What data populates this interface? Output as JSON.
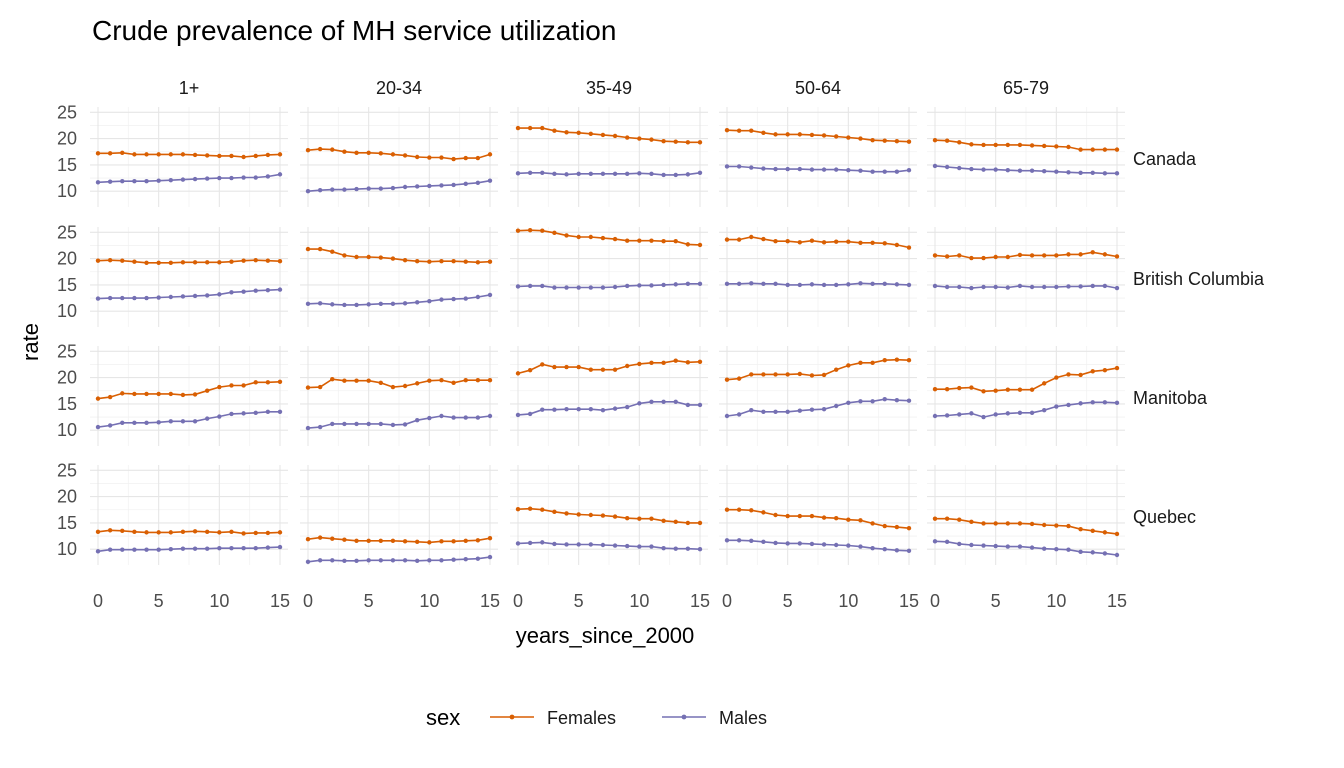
{
  "chart_data": {
    "type": "line",
    "title": "Crude prevalence of MH service utilization",
    "xlabel": "years_since_2000",
    "ylabel": "rate",
    "xlim": [
      0,
      15
    ],
    "ylim": [
      7,
      26
    ],
    "x_ticks": [
      0,
      5,
      10,
      15
    ],
    "y_ticks": [
      10,
      15,
      20,
      25
    ],
    "grid": true,
    "legend": {
      "title": "sex",
      "position": "bottom"
    },
    "x": [
      0,
      1,
      2,
      3,
      4,
      5,
      6,
      7,
      8,
      9,
      10,
      11,
      12,
      13,
      14,
      15
    ],
    "series_colors": {
      "Females": "#D95F02",
      "Males": "#7570B3"
    },
    "col_facets": [
      "1+",
      "20-34",
      "35-49",
      "50-64",
      "65-79"
    ],
    "row_facets": [
      "Canada",
      "British Columbia",
      "Manitoba",
      "Quebec"
    ],
    "panels": [
      {
        "row": "Canada",
        "col": "1+",
        "series": [
          {
            "name": "Females",
            "values": [
              17.2,
              17.2,
              17.3,
              17.0,
              17.0,
              17.0,
              17.0,
              17.0,
              16.9,
              16.8,
              16.7,
              16.7,
              16.5,
              16.7,
              16.9,
              17.0
            ]
          },
          {
            "name": "Males",
            "values": [
              11.7,
              11.8,
              11.9,
              11.9,
              11.9,
              12.0,
              12.1,
              12.2,
              12.3,
              12.4,
              12.5,
              12.5,
              12.6,
              12.6,
              12.8,
              13.2
            ]
          }
        ]
      },
      {
        "row": "Canada",
        "col": "20-34",
        "series": [
          {
            "name": "Females",
            "values": [
              17.8,
              18.0,
              17.9,
              17.5,
              17.3,
              17.3,
              17.2,
              17.0,
              16.8,
              16.5,
              16.4,
              16.4,
              16.1,
              16.3,
              16.3,
              17.0
            ]
          },
          {
            "name": "Males",
            "values": [
              10.0,
              10.2,
              10.3,
              10.3,
              10.4,
              10.5,
              10.5,
              10.6,
              10.8,
              10.9,
              11.0,
              11.1,
              11.2,
              11.4,
              11.6,
              12.0
            ]
          }
        ]
      },
      {
        "row": "Canada",
        "col": "35-49",
        "series": [
          {
            "name": "Females",
            "values": [
              22.0,
              22.0,
              22.0,
              21.5,
              21.2,
              21.1,
              20.9,
              20.7,
              20.5,
              20.2,
              20.0,
              19.8,
              19.5,
              19.4,
              19.3,
              19.3
            ]
          },
          {
            "name": "Males",
            "values": [
              13.4,
              13.5,
              13.5,
              13.3,
              13.2,
              13.3,
              13.3,
              13.3,
              13.3,
              13.3,
              13.4,
              13.3,
              13.1,
              13.1,
              13.2,
              13.5
            ]
          }
        ]
      },
      {
        "row": "Canada",
        "col": "50-64",
        "series": [
          {
            "name": "Females",
            "values": [
              21.6,
              21.5,
              21.5,
              21.1,
              20.8,
              20.8,
              20.8,
              20.7,
              20.6,
              20.4,
              20.2,
              20.0,
              19.7,
              19.6,
              19.5,
              19.4
            ]
          },
          {
            "name": "Males",
            "values": [
              14.7,
              14.7,
              14.5,
              14.3,
              14.2,
              14.2,
              14.2,
              14.1,
              14.1,
              14.1,
              14.0,
              13.9,
              13.7,
              13.7,
              13.7,
              14.0
            ]
          }
        ]
      },
      {
        "row": "Canada",
        "col": "65-79",
        "series": [
          {
            "name": "Females",
            "values": [
              19.7,
              19.6,
              19.3,
              18.9,
              18.8,
              18.8,
              18.8,
              18.8,
              18.7,
              18.6,
              18.5,
              18.4,
              17.9,
              17.9,
              17.9,
              17.9
            ]
          },
          {
            "name": "Males",
            "values": [
              14.8,
              14.6,
              14.4,
              14.2,
              14.1,
              14.1,
              14.0,
              13.9,
              13.9,
              13.8,
              13.7,
              13.6,
              13.5,
              13.5,
              13.4,
              13.4
            ]
          }
        ]
      },
      {
        "row": "British Columbia",
        "col": "1+",
        "series": [
          {
            "name": "Females",
            "values": [
              19.6,
              19.7,
              19.6,
              19.4,
              19.2,
              19.2,
              19.2,
              19.3,
              19.3,
              19.3,
              19.3,
              19.4,
              19.6,
              19.7,
              19.6,
              19.5
            ]
          },
          {
            "name": "Males",
            "values": [
              12.4,
              12.5,
              12.5,
              12.5,
              12.5,
              12.6,
              12.7,
              12.8,
              12.9,
              13.0,
              13.2,
              13.6,
              13.7,
              13.9,
              14.0,
              14.1
            ]
          }
        ]
      },
      {
        "row": "British Columbia",
        "col": "20-34",
        "series": [
          {
            "name": "Females",
            "values": [
              21.8,
              21.8,
              21.3,
              20.6,
              20.3,
              20.3,
              20.2,
              20.0,
              19.7,
              19.5,
              19.4,
              19.5,
              19.5,
              19.4,
              19.3,
              19.4
            ]
          },
          {
            "name": "Males",
            "values": [
              11.4,
              11.5,
              11.3,
              11.2,
              11.2,
              11.3,
              11.4,
              11.4,
              11.5,
              11.7,
              11.9,
              12.2,
              12.3,
              12.4,
              12.7,
              13.1
            ]
          }
        ]
      },
      {
        "row": "British Columbia",
        "col": "35-49",
        "series": [
          {
            "name": "Females",
            "values": [
              25.3,
              25.4,
              25.3,
              24.9,
              24.4,
              24.1,
              24.1,
              23.9,
              23.7,
              23.4,
              23.4,
              23.4,
              23.3,
              23.3,
              22.7,
              22.6
            ]
          },
          {
            "name": "Males",
            "values": [
              14.7,
              14.8,
              14.8,
              14.5,
              14.5,
              14.5,
              14.5,
              14.5,
              14.6,
              14.8,
              14.9,
              14.9,
              15.0,
              15.1,
              15.2,
              15.2
            ]
          }
        ]
      },
      {
        "row": "British Columbia",
        "col": "50-64",
        "series": [
          {
            "name": "Females",
            "values": [
              23.6,
              23.6,
              24.1,
              23.7,
              23.3,
              23.3,
              23.1,
              23.4,
              23.1,
              23.2,
              23.2,
              23.0,
              23.0,
              22.9,
              22.6,
              22.1
            ]
          },
          {
            "name": "Males",
            "values": [
              15.2,
              15.2,
              15.3,
              15.2,
              15.2,
              15.0,
              15.0,
              15.1,
              15.0,
              15.0,
              15.1,
              15.3,
              15.2,
              15.2,
              15.1,
              15.0
            ]
          }
        ]
      },
      {
        "row": "British Columbia",
        "col": "65-79",
        "series": [
          {
            "name": "Females",
            "values": [
              20.6,
              20.4,
              20.6,
              20.1,
              20.1,
              20.3,
              20.3,
              20.7,
              20.6,
              20.6,
              20.6,
              20.8,
              20.8,
              21.2,
              20.8,
              20.4
            ]
          },
          {
            "name": "Males",
            "values": [
              14.8,
              14.6,
              14.6,
              14.4,
              14.6,
              14.6,
              14.5,
              14.8,
              14.6,
              14.6,
              14.6,
              14.7,
              14.7,
              14.8,
              14.8,
              14.4
            ]
          }
        ]
      },
      {
        "row": "Manitoba",
        "col": "1+",
        "series": [
          {
            "name": "Females",
            "values": [
              16.0,
              16.3,
              17.0,
              16.9,
              16.9,
              16.9,
              16.9,
              16.7,
              16.8,
              17.5,
              18.2,
              18.5,
              18.5,
              19.1,
              19.1,
              19.2
            ]
          },
          {
            "name": "Males",
            "values": [
              10.6,
              10.9,
              11.4,
              11.4,
              11.4,
              11.5,
              11.7,
              11.7,
              11.7,
              12.2,
              12.6,
              13.1,
              13.2,
              13.3,
              13.5,
              13.5
            ]
          }
        ]
      },
      {
        "row": "Manitoba",
        "col": "20-34",
        "series": [
          {
            "name": "Females",
            "values": [
              18.1,
              18.2,
              19.7,
              19.4,
              19.4,
              19.4,
              19.0,
              18.2,
              18.4,
              18.9,
              19.4,
              19.5,
              19.0,
              19.5,
              19.5,
              19.5
            ]
          },
          {
            "name": "Males",
            "values": [
              10.4,
              10.6,
              11.2,
              11.2,
              11.2,
              11.2,
              11.2,
              11.0,
              11.1,
              11.9,
              12.3,
              12.7,
              12.4,
              12.4,
              12.4,
              12.7
            ]
          }
        ]
      },
      {
        "row": "Manitoba",
        "col": "35-49",
        "series": [
          {
            "name": "Females",
            "values": [
              20.8,
              21.4,
              22.5,
              22.0,
              22.0,
              22.0,
              21.5,
              21.5,
              21.5,
              22.2,
              22.6,
              22.8,
              22.8,
              23.2,
              22.9,
              23.0
            ]
          },
          {
            "name": "Males",
            "values": [
              12.9,
              13.1,
              13.9,
              13.9,
              14.0,
              14.0,
              14.0,
              13.8,
              14.1,
              14.4,
              15.1,
              15.4,
              15.4,
              15.4,
              14.8,
              14.8
            ]
          }
        ]
      },
      {
        "row": "Manitoba",
        "col": "50-64",
        "series": [
          {
            "name": "Females",
            "values": [
              19.6,
              19.8,
              20.6,
              20.6,
              20.6,
              20.6,
              20.7,
              20.4,
              20.5,
              21.5,
              22.3,
              22.8,
              22.8,
              23.3,
              23.4,
              23.3
            ]
          },
          {
            "name": "Males",
            "values": [
              12.7,
              13.0,
              13.8,
              13.5,
              13.5,
              13.5,
              13.7,
              13.9,
              14.0,
              14.6,
              15.2,
              15.5,
              15.5,
              15.9,
              15.7,
              15.6
            ]
          }
        ]
      },
      {
        "row": "Manitoba",
        "col": "65-79",
        "series": [
          {
            "name": "Females",
            "values": [
              17.8,
              17.8,
              18.0,
              18.1,
              17.4,
              17.5,
              17.7,
              17.7,
              17.7,
              18.9,
              20.0,
              20.6,
              20.5,
              21.2,
              21.4,
              21.8
            ]
          },
          {
            "name": "Males",
            "values": [
              12.7,
              12.8,
              13.0,
              13.2,
              12.5,
              13.0,
              13.2,
              13.3,
              13.3,
              13.8,
              14.5,
              14.8,
              15.1,
              15.3,
              15.3,
              15.2
            ]
          }
        ]
      },
      {
        "row": "Quebec",
        "col": "1+",
        "series": [
          {
            "name": "Females",
            "values": [
              13.3,
              13.6,
              13.5,
              13.3,
              13.2,
              13.2,
              13.2,
              13.3,
              13.4,
              13.3,
              13.2,
              13.3,
              13.0,
              13.1,
              13.1,
              13.2
            ]
          },
          {
            "name": "Males",
            "values": [
              9.6,
              9.9,
              9.9,
              9.9,
              9.9,
              9.9,
              10.0,
              10.1,
              10.1,
              10.1,
              10.2,
              10.2,
              10.2,
              10.2,
              10.3,
              10.4
            ]
          }
        ]
      },
      {
        "row": "Quebec",
        "col": "20-34",
        "series": [
          {
            "name": "Females",
            "values": [
              11.9,
              12.2,
              12.0,
              11.8,
              11.6,
              11.6,
              11.6,
              11.6,
              11.5,
              11.4,
              11.3,
              11.5,
              11.5,
              11.6,
              11.7,
              12.1
            ]
          },
          {
            "name": "Males",
            "values": [
              7.6,
              7.9,
              7.9,
              7.8,
              7.8,
              7.9,
              7.9,
              7.9,
              7.9,
              7.8,
              7.9,
              7.9,
              8.0,
              8.1,
              8.2,
              8.5
            ]
          }
        ]
      },
      {
        "row": "Quebec",
        "col": "35-49",
        "series": [
          {
            "name": "Females",
            "values": [
              17.6,
              17.7,
              17.5,
              17.1,
              16.8,
              16.6,
              16.5,
              16.4,
              16.2,
              15.9,
              15.8,
              15.8,
              15.4,
              15.2,
              15.0,
              15.0
            ]
          },
          {
            "name": "Males",
            "values": [
              11.1,
              11.2,
              11.3,
              11.0,
              10.9,
              10.9,
              10.9,
              10.8,
              10.7,
              10.6,
              10.5,
              10.5,
              10.2,
              10.1,
              10.1,
              10.0
            ]
          }
        ]
      },
      {
        "row": "Quebec",
        "col": "50-64",
        "series": [
          {
            "name": "Females",
            "values": [
              17.5,
              17.5,
              17.4,
              17.0,
              16.5,
              16.3,
              16.3,
              16.3,
              16.0,
              15.9,
              15.6,
              15.5,
              14.9,
              14.4,
              14.2,
              14.0
            ]
          },
          {
            "name": "Males",
            "values": [
              11.7,
              11.7,
              11.6,
              11.4,
              11.2,
              11.1,
              11.1,
              11.0,
              10.9,
              10.8,
              10.7,
              10.5,
              10.2,
              10.0,
              9.8,
              9.7
            ]
          }
        ]
      },
      {
        "row": "Quebec",
        "col": "65-79",
        "series": [
          {
            "name": "Females",
            "values": [
              15.8,
              15.8,
              15.6,
              15.2,
              14.9,
              14.9,
              14.9,
              14.9,
              14.8,
              14.6,
              14.5,
              14.4,
              13.8,
              13.5,
              13.2,
              12.9
            ]
          },
          {
            "name": "Males",
            "values": [
              11.5,
              11.4,
              11.0,
              10.8,
              10.7,
              10.6,
              10.5,
              10.5,
              10.3,
              10.1,
              10.0,
              9.9,
              9.5,
              9.4,
              9.2,
              8.9
            ]
          }
        ]
      }
    ]
  }
}
